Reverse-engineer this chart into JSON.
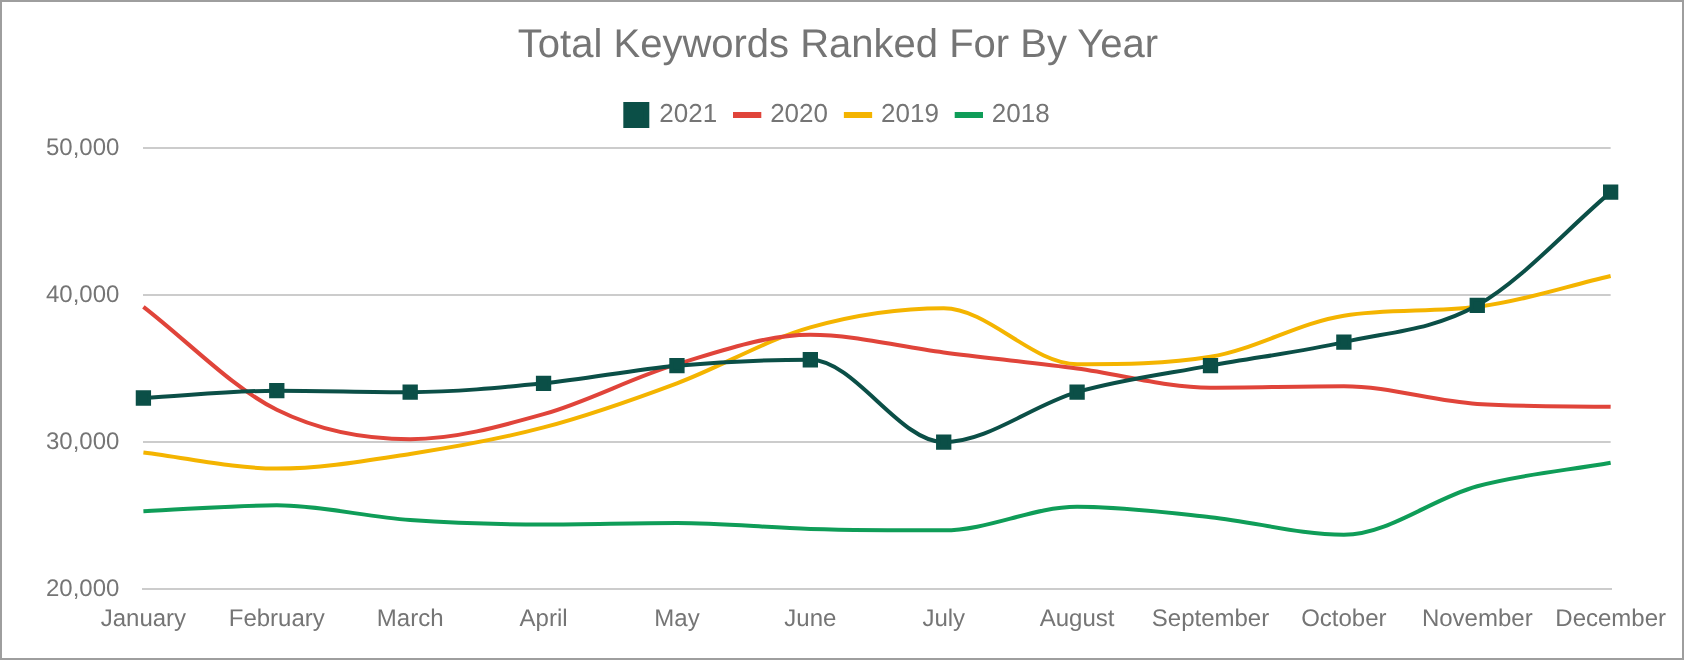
{
  "chart_data": {
    "type": "line",
    "title": "Total Keywords Ranked For By Year",
    "categories": [
      "January",
      "February",
      "March",
      "April",
      "May",
      "June",
      "July",
      "August",
      "September",
      "October",
      "November",
      "December"
    ],
    "series": [
      {
        "name": "2021",
        "color": "#0b4f47",
        "marker": "square",
        "values": [
          33000,
          33500,
          33400,
          34000,
          35200,
          35600,
          30000,
          33400,
          35200,
          36800,
          39300,
          47000
        ]
      },
      {
        "name": "2020",
        "color": "#e0443a",
        "marker": "none",
        "values": [
          39200,
          32200,
          30200,
          31900,
          35300,
          37300,
          36100,
          35000,
          33700,
          33800,
          32600,
          32400
        ]
      },
      {
        "name": "2019",
        "color": "#f4b400",
        "marker": "none",
        "values": [
          29300,
          28200,
          29200,
          31000,
          34000,
          37800,
          39100,
          35300,
          35800,
          38600,
          39200,
          41300
        ]
      },
      {
        "name": "2018",
        "color": "#0f9d58",
        "marker": "none",
        "values": [
          25300,
          25700,
          24700,
          24400,
          24500,
          24100,
          24000,
          25600,
          24900,
          23700,
          27000,
          28600
        ]
      }
    ],
    "ylim": [
      20000,
      50000
    ],
    "yticks": [
      {
        "value": 20000,
        "label": "20,000"
      },
      {
        "value": 30000,
        "label": "30,000"
      },
      {
        "value": 40000,
        "label": "40,000"
      },
      {
        "value": 50000,
        "label": "50,000"
      }
    ],
    "grid": "y",
    "legend": "top"
  }
}
